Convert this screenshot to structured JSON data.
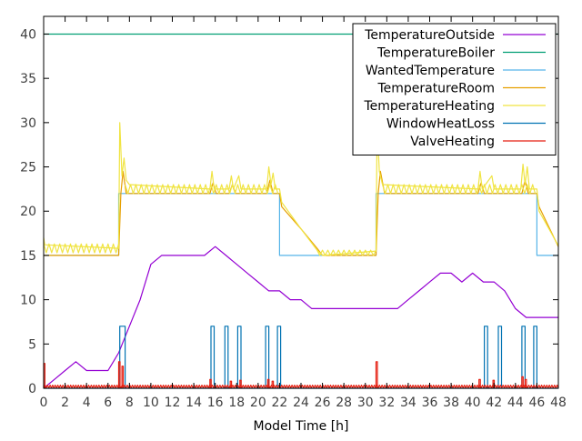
{
  "chart_data": {
    "type": "line",
    "title": "",
    "xlabel": "Model Time [h]",
    "ylabel": "",
    "xlim": [
      0,
      48
    ],
    "ylim": [
      0,
      42
    ],
    "x_ticks": [
      0,
      2,
      4,
      6,
      8,
      10,
      12,
      14,
      16,
      18,
      20,
      22,
      24,
      26,
      28,
      30,
      32,
      34,
      36,
      38,
      40,
      42,
      44,
      46,
      48
    ],
    "y_ticks": [
      0,
      5,
      10,
      15,
      20,
      25,
      30,
      35,
      40
    ],
    "grid": false,
    "legend_position": "top-right",
    "series": [
      {
        "name": "TemperatureOutside",
        "color": "#9400d3",
        "style": "line",
        "points": [
          [
            0,
            0
          ],
          [
            1,
            1
          ],
          [
            2,
            2
          ],
          [
            3,
            3
          ],
          [
            4,
            2
          ],
          [
            5,
            2
          ],
          [
            6,
            2
          ],
          [
            7,
            4
          ],
          [
            8,
            7
          ],
          [
            9,
            10
          ],
          [
            10,
            14
          ],
          [
            11,
            15
          ],
          [
            12,
            15
          ],
          [
            13,
            15
          ],
          [
            14,
            15
          ],
          [
            15,
            15
          ],
          [
            16,
            16
          ],
          [
            17,
            15
          ],
          [
            18,
            14
          ],
          [
            19,
            13
          ],
          [
            20,
            12
          ],
          [
            21,
            11
          ],
          [
            22,
            11
          ],
          [
            23,
            10
          ],
          [
            24,
            10
          ],
          [
            25,
            9
          ],
          [
            26,
            9
          ],
          [
            27,
            9
          ],
          [
            28,
            9
          ],
          [
            29,
            9
          ],
          [
            30,
            9
          ],
          [
            31,
            9
          ],
          [
            32,
            9
          ],
          [
            33,
            9
          ],
          [
            34,
            10
          ],
          [
            35,
            11
          ],
          [
            36,
            12
          ],
          [
            37,
            13
          ],
          [
            38,
            13
          ],
          [
            39,
            12
          ],
          [
            40,
            13
          ],
          [
            41,
            12
          ],
          [
            42,
            12
          ],
          [
            43,
            11
          ],
          [
            44,
            9
          ],
          [
            45,
            8
          ],
          [
            46,
            8
          ],
          [
            47,
            8
          ],
          [
            48,
            8
          ]
        ]
      },
      {
        "name": "TemperatureBoiler",
        "color": "#009e73",
        "style": "line",
        "points": [
          [
            0,
            40
          ],
          [
            48,
            40
          ]
        ]
      },
      {
        "name": "WantedTemperature",
        "color": "#56b4e9",
        "style": "line",
        "points": [
          [
            0,
            15
          ],
          [
            7,
            15
          ],
          [
            7,
            22
          ],
          [
            22,
            22
          ],
          [
            22,
            15
          ],
          [
            31,
            15
          ],
          [
            31,
            22
          ],
          [
            46,
            22
          ],
          [
            46,
            15
          ],
          [
            48,
            15
          ]
        ]
      },
      {
        "name": "TemperatureRoom",
        "color": "#e69f00",
        "style": "line",
        "points": [
          [
            0,
            15
          ],
          [
            7,
            15
          ],
          [
            7.2,
            22
          ],
          [
            7.4,
            24.5
          ],
          [
            7.7,
            22
          ],
          [
            8,
            22
          ],
          [
            15.5,
            22
          ],
          [
            15.8,
            23.2
          ],
          [
            16.1,
            22
          ],
          [
            17.3,
            22
          ],
          [
            17.6,
            23
          ],
          [
            17.9,
            22
          ],
          [
            20.8,
            22
          ],
          [
            21.1,
            23.5
          ],
          [
            21.4,
            22
          ],
          [
            22,
            22
          ],
          [
            22.2,
            20.5
          ],
          [
            24,
            18
          ],
          [
            25.5,
            15.8
          ],
          [
            26,
            15
          ],
          [
            31,
            15
          ],
          [
            31.2,
            22
          ],
          [
            31.4,
            24.5
          ],
          [
            31.8,
            22
          ],
          [
            40.5,
            22
          ],
          [
            40.8,
            23.2
          ],
          [
            41.1,
            22
          ],
          [
            44.6,
            22
          ],
          [
            44.9,
            23.5
          ],
          [
            45.2,
            22
          ],
          [
            46,
            22
          ],
          [
            46.2,
            20.5
          ],
          [
            48,
            16
          ]
        ]
      },
      {
        "name": "TemperatureHeating",
        "color": "#f0e442",
        "style": "zigzag",
        "segments": [
          {
            "x0": 0,
            "x1": 7,
            "lo": 15.3,
            "hi": 16.3,
            "step": 0.25
          },
          {
            "x0": 7.6,
            "x1": 22,
            "lo": 22.0,
            "hi": 23.0,
            "step": 0.25
          },
          {
            "x0": 31.6,
            "x1": 46,
            "lo": 22.0,
            "hi": 23.0,
            "step": 0.25
          },
          {
            "x0": 25.5,
            "x1": 31,
            "lo": 15.0,
            "hi": 15.6,
            "step": 0.25
          }
        ],
        "points": [
          [
            0,
            17
          ],
          [
            0.1,
            16.2
          ],
          [
            7,
            15.8
          ],
          [
            7.1,
            30
          ],
          [
            7.3,
            24
          ],
          [
            7.5,
            26
          ],
          [
            7.7,
            23.5
          ],
          [
            8,
            23
          ],
          [
            15.5,
            22.5
          ],
          [
            15.7,
            24.5
          ],
          [
            15.9,
            22.5
          ],
          [
            17.3,
            22.5
          ],
          [
            17.5,
            24
          ],
          [
            17.7,
            22.5
          ],
          [
            18.2,
            24
          ],
          [
            18.4,
            22.5
          ],
          [
            20.8,
            22.5
          ],
          [
            21,
            25
          ],
          [
            21.2,
            23
          ],
          [
            21.4,
            24.3
          ],
          [
            21.6,
            22.5
          ],
          [
            22,
            22.5
          ],
          [
            22.2,
            21
          ],
          [
            24,
            18
          ],
          [
            25.5,
            15.6
          ],
          [
            26,
            15
          ],
          [
            31,
            15.5
          ],
          [
            31.1,
            30
          ],
          [
            31.3,
            24.5
          ],
          [
            31.6,
            23
          ],
          [
            40.5,
            22.5
          ],
          [
            40.7,
            24.5
          ],
          [
            40.9,
            22.5
          ],
          [
            41.8,
            24
          ],
          [
            42,
            22.5
          ],
          [
            44.5,
            22.5
          ],
          [
            44.7,
            25.3
          ],
          [
            44.9,
            23
          ],
          [
            45.1,
            25
          ],
          [
            45.3,
            22.5
          ],
          [
            46,
            22.5
          ],
          [
            46.2,
            20
          ],
          [
            48,
            16.1
          ]
        ]
      },
      {
        "name": "WindowHeatLoss",
        "color": "#0072b2",
        "style": "pulses",
        "pulses": [
          [
            7.1,
            7.6,
            7
          ],
          [
            15.6,
            15.9,
            7
          ],
          [
            16.9,
            17.2,
            7
          ],
          [
            18.1,
            18.4,
            7
          ],
          [
            20.7,
            21.0,
            7
          ],
          [
            21.8,
            22.1,
            7
          ],
          [
            41.1,
            41.4,
            7
          ],
          [
            42.4,
            42.7,
            7
          ],
          [
            44.6,
            44.9,
            7
          ],
          [
            45.7,
            46.0,
            7
          ]
        ]
      },
      {
        "name": "ValveHeating",
        "color": "#e51e10",
        "style": "noise",
        "spikes": [
          [
            0,
            2.8
          ],
          [
            7,
            3.0
          ],
          [
            7.3,
            2.5
          ],
          [
            15.5,
            1.0
          ],
          [
            17.4,
            0.8
          ],
          [
            18.3,
            0.9
          ],
          [
            20.9,
            1.0
          ],
          [
            21.3,
            0.8
          ],
          [
            31,
            3.0
          ],
          [
            40.6,
            1.0
          ],
          [
            41.9,
            0.9
          ],
          [
            44.6,
            1.3
          ],
          [
            44.9,
            1.0
          ]
        ]
      }
    ]
  }
}
